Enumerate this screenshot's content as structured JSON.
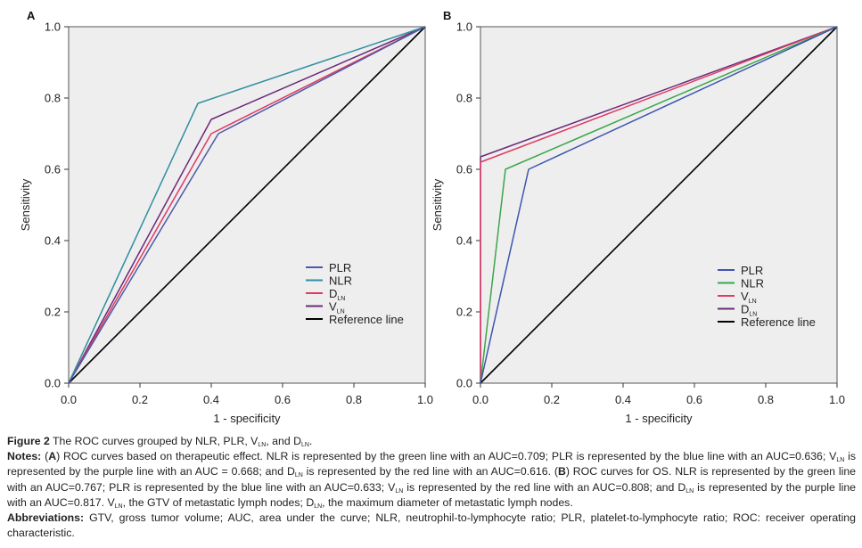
{
  "figure": {
    "caption_title_bold": "Figure 2",
    "caption_title_text": " The ROC curves grouped by NLR, PLR, V",
    "caption_title_sub1": "LN",
    "caption_title_mid": ", and D",
    "caption_title_sub2": "LN",
    "caption_title_end": ".",
    "notes_label": "Notes:",
    "notes_text": " (A) ROC curves based on therapeutic effect. NLR is represented by the green line with an AUC=0.709; PLR is represented by the blue line with an AUC=0.636; V_LN is represented by the purple line with an AUC = 0.668; and D_LN is represented by the red line with an AUC=0.616. (B) ROC curves for OS. NLR is represented by the green line with an AUC=0.767; PLR is represented by the blue line with an AUC=0.633; V_LN is represented by the red line with an AUC=0.808; and D_LN is represented by the purple line with an AUC=0.817. V_LN, the GTV of metastatic lymph nodes; D_LN, the maximum diameter of metastatic lymph nodes.",
    "abbrev_label": "Abbreviations:",
    "abbrev_text": " GTV, gross tumor volume; AUC, area under the curve; NLR, neutrophil-to-lymphocyte ratio; PLR, platelet-to-lymphocyte ratio; ROC: receiver operating characteristic."
  },
  "chart_data": [
    {
      "panel": "A",
      "type": "line",
      "title": "ROC curves based on therapeutic effect",
      "xlabel": "1 - specificity",
      "ylabel": "Sensitivity",
      "xlim": [
        0,
        1
      ],
      "ylim": [
        0,
        1
      ],
      "xticks": [
        "0.0",
        "0.2",
        "0.4",
        "0.6",
        "0.8",
        "1.0"
      ],
      "yticks": [
        "0.0",
        "0.2",
        "0.4",
        "0.6",
        "0.8",
        "1.0"
      ],
      "legend_position": "center-right",
      "background": "#efeeef",
      "series": [
        {
          "name": "PLR",
          "sub": "",
          "color": "#4a5aa8",
          "auc": 0.636,
          "x": [
            0,
            0.42,
            1
          ],
          "y": [
            0,
            0.7,
            1
          ]
        },
        {
          "name": "NLR",
          "sub": "",
          "color": "#2e8f9e",
          "auc": 0.709,
          "x": [
            0,
            0.3625,
            1
          ],
          "y": [
            0,
            0.785,
            1
          ]
        },
        {
          "name": "D",
          "sub": "LN",
          "color": "#e03a62",
          "auc": 0.616,
          "x": [
            0,
            0.4,
            1
          ],
          "y": [
            0,
            0.7,
            1
          ]
        },
        {
          "name": "V",
          "sub": "LN",
          "color": "#6a2a78",
          "auc": 0.668,
          "x": [
            0,
            0.4,
            1
          ],
          "y": [
            0,
            0.74,
            1
          ]
        },
        {
          "name": "Reference line",
          "sub": "",
          "color": "#000000",
          "x": [
            0,
            1
          ],
          "y": [
            0,
            1
          ]
        }
      ]
    },
    {
      "panel": "B",
      "type": "line",
      "title": "ROC curves for OS",
      "xlabel": "1 - specificity",
      "ylabel": "Sensitivity",
      "xlim": [
        0,
        1
      ],
      "ylim": [
        0,
        1
      ],
      "xticks": [
        "0.0",
        "0.2",
        "0.4",
        "0.6",
        "0.8",
        "1.0"
      ],
      "yticks": [
        "0.0",
        "0.2",
        "0.4",
        "0.6",
        "0.8",
        "1.0"
      ],
      "legend_position": "center-right",
      "background": "#efeeef",
      "series": [
        {
          "name": "PLR",
          "sub": "",
          "color": "#3d55b0",
          "auc": 0.633,
          "x": [
            0,
            0.135,
            1
          ],
          "y": [
            0,
            0.6,
            1
          ]
        },
        {
          "name": "NLR",
          "sub": "",
          "color": "#3aa64a",
          "auc": 0.767,
          "x": [
            0,
            0.07,
            1
          ],
          "y": [
            0,
            0.6,
            1
          ]
        },
        {
          "name": "V",
          "sub": "LN",
          "color": "#e03a62",
          "auc": 0.808,
          "x": [
            0,
            0,
            1
          ],
          "y": [
            0,
            0.62,
            1
          ]
        },
        {
          "name": "D",
          "sub": "LN",
          "color": "#6a2a78",
          "auc": 0.817,
          "x": [
            0,
            0,
            1
          ],
          "y": [
            0,
            0.635,
            1
          ]
        },
        {
          "name": "Reference line",
          "sub": "",
          "color": "#000000",
          "x": [
            0,
            1
          ],
          "y": [
            0,
            1
          ]
        }
      ]
    }
  ]
}
